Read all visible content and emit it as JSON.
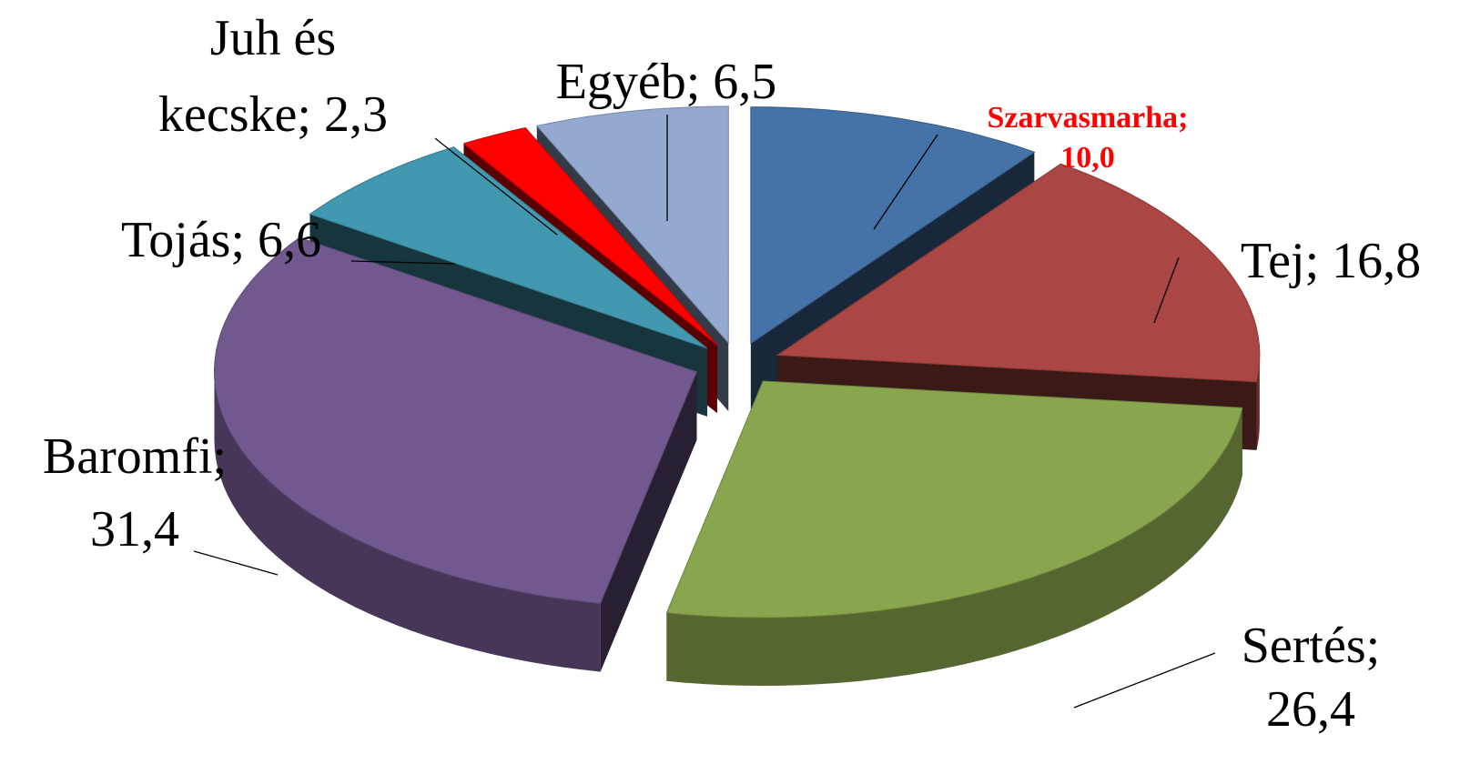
{
  "chart_data": {
    "type": "pie",
    "style": "3d-exploded",
    "slices": [
      {
        "label": "Szarvasmarha",
        "value": 10.0,
        "value_text": "10,0",
        "color": "#4572A7",
        "highlight": true,
        "label_color": "#FF0000"
      },
      {
        "label": "Tej",
        "value": 16.8,
        "value_text": "16,8",
        "color": "#AA4643"
      },
      {
        "label": "Sertés",
        "value": 26.4,
        "value_text": "26,4",
        "color": "#89A54E"
      },
      {
        "label": "Baromfi",
        "value": 31.4,
        "value_text": "31,4",
        "color": "#71588F"
      },
      {
        "label": "Tojás",
        "value": 6.6,
        "value_text": "6,6",
        "color": "#4198AF"
      },
      {
        "label": "Juh és kecske",
        "value": 2.3,
        "value_text": "2,3",
        "color": "#FF0000"
      },
      {
        "label": "Egyéb",
        "value": 6.5,
        "value_text": "6,5",
        "color": "#93A9CF"
      }
    ],
    "label_lines": [
      [
        "Szarvasmarha;",
        "10,0"
      ],
      [
        "Tej; 16,8"
      ],
      [
        "Sertés;",
        "26,4"
      ],
      [
        "Baromfi;",
        "31,4"
      ],
      [
        "Tojás; 6,6"
      ],
      [
        "Juh és",
        "kecske; 2,3"
      ],
      [
        "Egyéb; 6,5"
      ]
    ]
  }
}
